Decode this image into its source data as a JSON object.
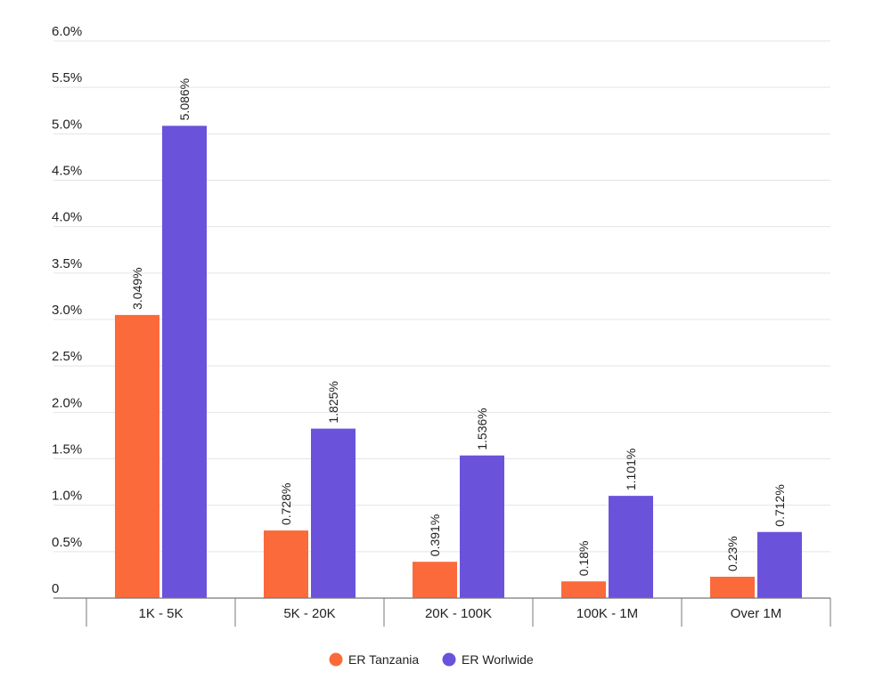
{
  "chart_data": {
    "type": "bar",
    "categories": [
      "1K - 5K",
      "5K - 20K",
      "20K - 100K",
      "100K - 1M",
      "Over 1M"
    ],
    "series": [
      {
        "name": "ER Tanzania",
        "color": "#fb6a3a",
        "values": [
          3.049,
          0.728,
          0.391,
          0.18,
          0.23
        ],
        "labels": [
          "3.049%",
          "0.728%",
          "0.391%",
          "0.18%",
          "0.23%"
        ]
      },
      {
        "name": "ER Worlwide",
        "color": "#6b52db",
        "values": [
          5.086,
          1.825,
          1.536,
          1.101,
          0.712
        ],
        "labels": [
          "5.086%",
          "1.825%",
          "1.536%",
          "1.101%",
          "0.712%"
        ]
      }
    ],
    "y_ticks": [
      {
        "value": 0,
        "label": "0"
      },
      {
        "value": 0.5,
        "label": "0.5%"
      },
      {
        "value": 1.0,
        "label": "1.0%"
      },
      {
        "value": 1.5,
        "label": "1.5%"
      },
      {
        "value": 2.0,
        "label": "2.0%"
      },
      {
        "value": 2.5,
        "label": "2.5%"
      },
      {
        "value": 3.0,
        "label": "3.0%"
      },
      {
        "value": 3.5,
        "label": "3.5%"
      },
      {
        "value": 4.0,
        "label": "4.0%"
      },
      {
        "value": 4.5,
        "label": "4.5%"
      },
      {
        "value": 5.0,
        "label": "5.0%"
      },
      {
        "value": 5.5,
        "label": "5.5%"
      },
      {
        "value": 6.0,
        "label": "6.0%"
      }
    ],
    "ylim": [
      0,
      6.0
    ],
    "grid": true,
    "legend_position": "bottom-center"
  }
}
